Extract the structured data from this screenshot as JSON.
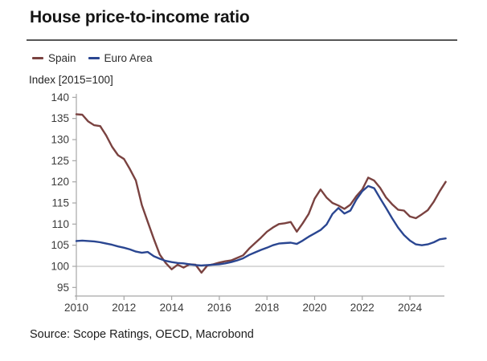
{
  "title": "House price-to-income ratio",
  "y_axis_unit": "Index [2015=100]",
  "source": "Source: Scope Ratings, OECD, Macrobond",
  "colors": {
    "spain": "#7a4240",
    "euro_area": "#2a4691",
    "axis": "#a6a6a6",
    "grid_baseline": "#c3c3c3",
    "tick_text": "#3b3b3b",
    "divider": "#565656",
    "title_text": "#151515"
  },
  "legend": {
    "items": [
      {
        "label": "Spain",
        "color": "#7a4240"
      },
      {
        "label": "Euro Area",
        "color": "#2a4691"
      }
    ]
  },
  "chart_data": {
    "type": "line",
    "title": "House price-to-income ratio",
    "xlabel": "",
    "ylabel": "Index [2015=100]",
    "legend_position": "top-left",
    "grid": "single horizontal baseline at y=100",
    "baseline_value": 100,
    "xlim": [
      2010,
      2025.6
    ],
    "ylim": [
      93,
      141
    ],
    "x_ticks": [
      2010,
      2012,
      2014,
      2016,
      2018,
      2020,
      2022,
      2024
    ],
    "y_ticks": [
      95,
      100,
      105,
      110,
      115,
      120,
      125,
      130,
      135,
      140
    ],
    "x": [
      2010,
      2010.25,
      2010.5,
      2010.75,
      2011,
      2011.25,
      2011.5,
      2011.75,
      2012,
      2012.25,
      2012.5,
      2012.75,
      2013,
      2013.25,
      2013.5,
      2013.75,
      2014,
      2014.25,
      2014.5,
      2014.75,
      2015,
      2015.25,
      2015.5,
      2015.75,
      2016,
      2016.25,
      2016.5,
      2016.75,
      2017,
      2017.25,
      2017.5,
      2017.75,
      2018,
      2018.25,
      2018.5,
      2018.75,
      2019,
      2019.25,
      2019.5,
      2019.75,
      2020,
      2020.25,
      2020.5,
      2020.75,
      2021,
      2021.25,
      2021.5,
      2021.75,
      2022,
      2022.25,
      2022.5,
      2022.75,
      2023,
      2023.25,
      2023.5,
      2023.75,
      2024,
      2024.25,
      2024.5,
      2024.75,
      2025,
      2025.25,
      2025.5
    ],
    "series": [
      {
        "name": "Spain",
        "color": "#7a4240",
        "values": [
          136.0,
          135.9,
          134.3,
          133.4,
          133.2,
          131.0,
          128.3,
          126.3,
          125.4,
          123.0,
          120.3,
          114.5,
          110.5,
          106.5,
          102.8,
          100.8,
          99.3,
          100.4,
          99.7,
          100.5,
          100.4,
          98.5,
          100.2,
          100.5,
          100.9,
          101.2,
          101.4,
          102.0,
          102.6,
          104.2,
          105.5,
          106.8,
          108.2,
          109.2,
          110.0,
          110.2,
          110.5,
          108.2,
          110.2,
          112.4,
          116.0,
          118.2,
          116.3,
          115.0,
          114.4,
          113.6,
          114.6,
          116.6,
          118.2,
          121.0,
          120.3,
          118.6,
          116.3,
          114.7,
          113.4,
          113.2,
          111.8,
          111.4,
          112.3,
          113.3,
          115.3,
          117.8,
          120.0
        ]
      },
      {
        "name": "Euro Area",
        "color": "#2a4691",
        "values": [
          106.0,
          106.1,
          106.0,
          105.9,
          105.7,
          105.4,
          105.1,
          104.7,
          104.4,
          104.0,
          103.5,
          103.2,
          103.4,
          102.4,
          101.8,
          101.3,
          101.0,
          100.8,
          100.7,
          100.5,
          100.3,
          100.2,
          100.3,
          100.4,
          100.5,
          100.7,
          101.0,
          101.4,
          101.9,
          102.7,
          103.3,
          103.9,
          104.4,
          105.0,
          105.4,
          105.5,
          105.6,
          105.3,
          106.1,
          107.0,
          107.8,
          108.6,
          109.9,
          112.4,
          113.8,
          112.5,
          113.2,
          115.8,
          117.8,
          119.0,
          118.5,
          116.1,
          113.8,
          111.4,
          109.2,
          107.4,
          106.1,
          105.2,
          105.0,
          105.2,
          105.7,
          106.4,
          106.6
        ]
      }
    ]
  }
}
